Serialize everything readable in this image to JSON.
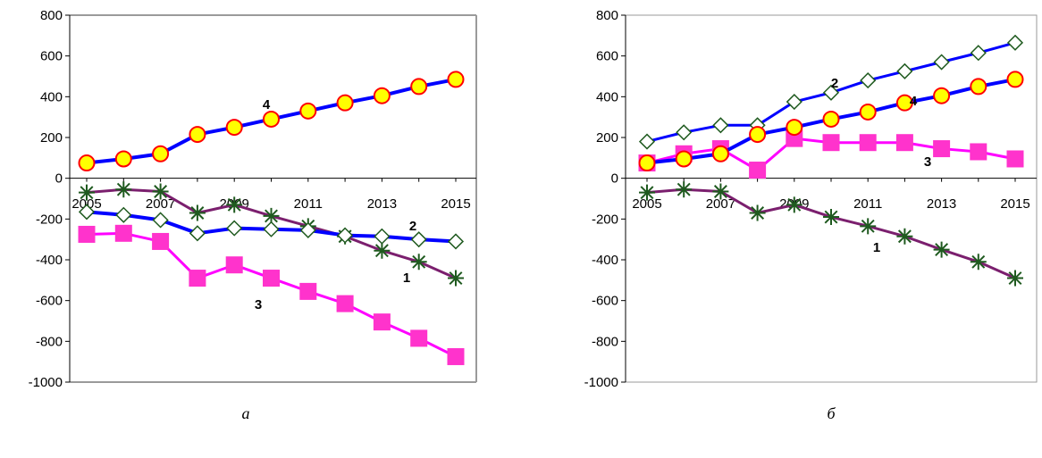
{
  "chart_data": [
    {
      "type": "line",
      "caption": "а",
      "x": [
        2005,
        2006,
        2007,
        2008,
        2009,
        2010,
        2011,
        2012,
        2013,
        2014,
        2015
      ],
      "x_tick_labels": [
        "2005",
        "2007",
        "2009",
        "2011",
        "2013",
        "2015"
      ],
      "ylim": [
        -1000,
        800
      ],
      "y_ticks": [
        800,
        600,
        400,
        200,
        0,
        -200,
        -400,
        -600,
        -800,
        -1000
      ],
      "grid": false,
      "series": [
        {
          "name": "1",
          "color": "#7b1f6e",
          "marker": "asterisk",
          "marker_color": "#1f5a1f",
          "values": [
            -70,
            -55,
            -65,
            -170,
            -130,
            -185,
            -235,
            -285,
            -355,
            -410,
            -490
          ]
        },
        {
          "name": "2",
          "color": "#0000ff",
          "marker": "diamond",
          "marker_color": "#1f5a1f",
          "values": [
            -165,
            -180,
            -205,
            -270,
            -245,
            -250,
            -255,
            -280,
            -285,
            -300,
            -310
          ]
        },
        {
          "name": "3",
          "color": "#ff00ff",
          "marker": "square",
          "marker_color": "#ff33cc",
          "values": [
            -275,
            -270,
            -310,
            -490,
            -425,
            -490,
            -555,
            -615,
            -705,
            -785,
            -875
          ]
        },
        {
          "name": "4",
          "color": "#0000ff",
          "marker": "circle",
          "marker_color": "#ffff00",
          "values": [
            75,
            95,
            120,
            215,
            250,
            290,
            330,
            370,
            405,
            450,
            485
          ]
        }
      ]
    },
    {
      "type": "line",
      "caption": "б",
      "x": [
        2005,
        2006,
        2007,
        2008,
        2009,
        2010,
        2011,
        2012,
        2013,
        2014,
        2015
      ],
      "x_tick_labels": [
        "2005",
        "2007",
        "2009",
        "2011",
        "2013",
        "2015"
      ],
      "ylim": [
        -1000,
        800
      ],
      "y_ticks": [
        800,
        600,
        400,
        200,
        0,
        -200,
        -400,
        -600,
        -800,
        -1000
      ],
      "grid": false,
      "series": [
        {
          "name": "1",
          "color": "#7b1f6e",
          "marker": "asterisk",
          "marker_color": "#1f5a1f",
          "values": [
            -70,
            -55,
            -65,
            -170,
            -130,
            -190,
            -235,
            -285,
            -350,
            -410,
            -490
          ]
        },
        {
          "name": "2",
          "color": "#0000ff",
          "marker": "diamond",
          "marker_color": "#1f5a1f",
          "values": [
            180,
            225,
            260,
            260,
            375,
            420,
            480,
            525,
            570,
            615,
            665
          ]
        },
        {
          "name": "3",
          "color": "#ff00ff",
          "marker": "square",
          "marker_color": "#ff33cc",
          "values": [
            75,
            120,
            145,
            40,
            195,
            175,
            175,
            175,
            145,
            130,
            95
          ]
        },
        {
          "name": "4",
          "color": "#0000ff",
          "marker": "circle",
          "marker_color": "#ffff00",
          "values": [
            75,
            95,
            120,
            215,
            250,
            290,
            325,
            370,
            405,
            450,
            485
          ]
        }
      ]
    }
  ]
}
